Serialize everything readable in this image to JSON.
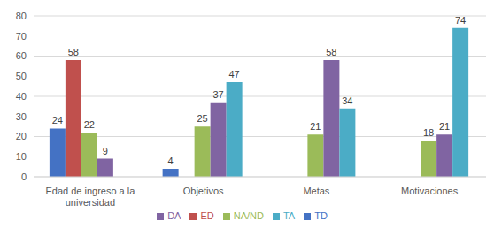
{
  "chart_data": {
    "type": "bar",
    "categories": [
      "Edad de ingreso a la universidad",
      "Objetivos",
      "Metas",
      "Motivaciones"
    ],
    "series": [
      {
        "name": "TD",
        "color": "#4472c4",
        "values": [
          24,
          4,
          0,
          0
        ]
      },
      {
        "name": "ED",
        "color": "#c0504d",
        "values": [
          58,
          0,
          0,
          0
        ]
      },
      {
        "name": "NA/ND",
        "color": "#9bbb59",
        "values": [
          22,
          25,
          21,
          18
        ]
      },
      {
        "name": "DA",
        "color": "#8064a2",
        "values": [
          9,
          37,
          58,
          21
        ]
      },
      {
        "name": "TA",
        "color": "#4bacc6",
        "values": [
          0,
          47,
          34,
          74
        ]
      }
    ],
    "ylim": [
      0,
      80
    ],
    "yticks": [
      0,
      10,
      20,
      30,
      40,
      50,
      60,
      70,
      80
    ],
    "grid": true,
    "legend": "bottom",
    "data_labels": true
  }
}
